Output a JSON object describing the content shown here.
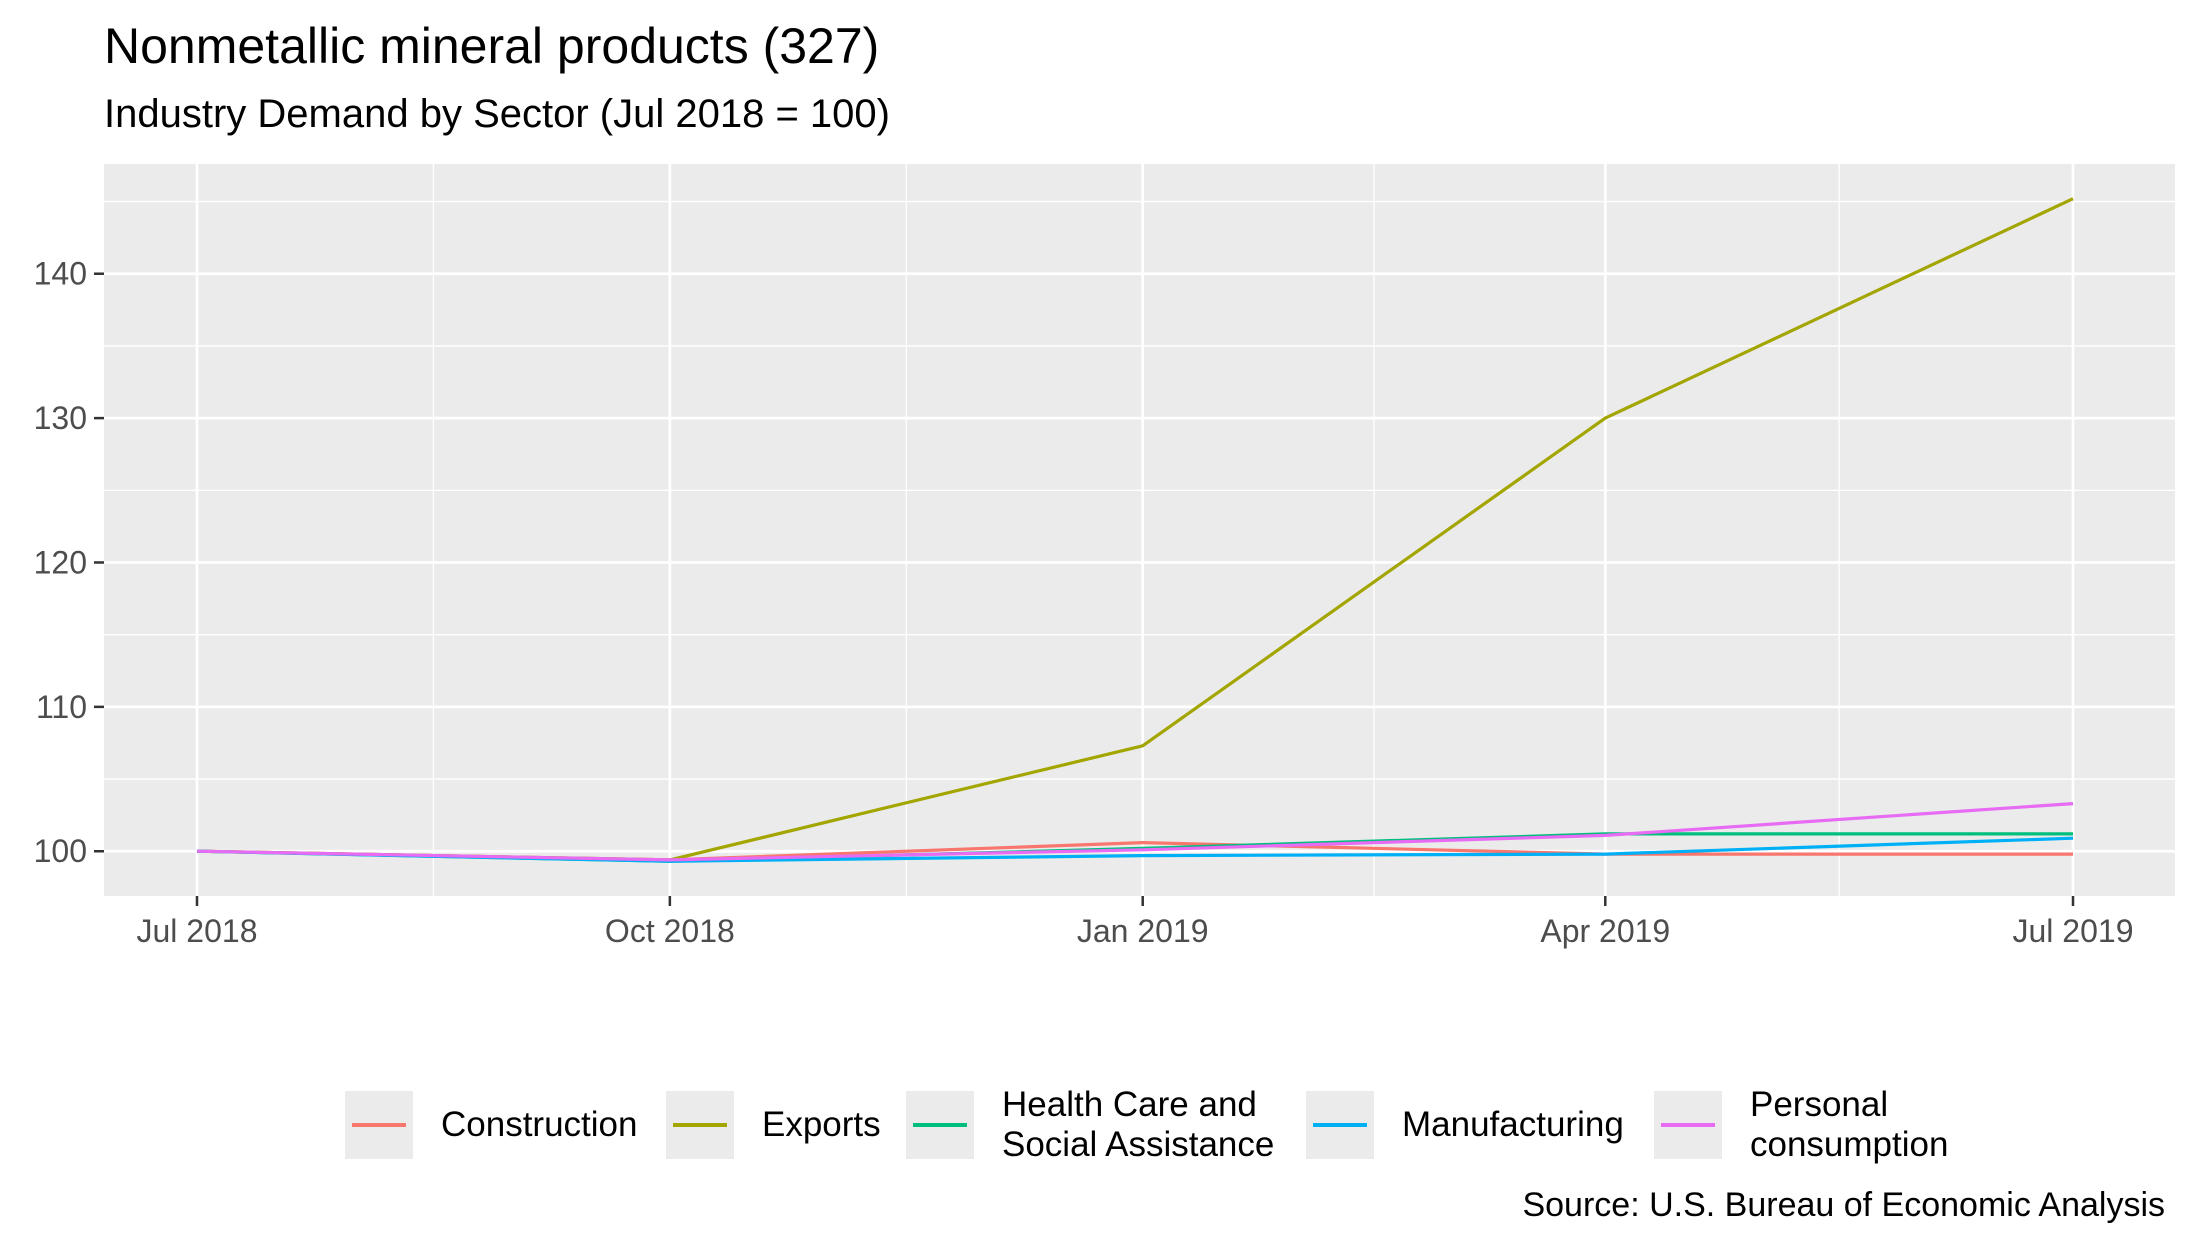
{
  "chart_data": {
    "type": "line",
    "title": "Nonmetallic mineral products (327)",
    "subtitle": "Industry Demand by Sector (Jul 2018 = 100)",
    "caption": "Source: U.S. Bureau of Economic Analysis",
    "xlabel": "",
    "ylabel": "",
    "x": [
      "2018-07-01",
      "2018-10-01",
      "2019-01-01",
      "2019-04-01",
      "2019-07-01"
    ],
    "x_ticks": [
      "Jul 2018",
      "Oct 2018",
      "Jan 2019",
      "Apr 2019",
      "Jul 2019"
    ],
    "y_ticks": [
      100,
      110,
      120,
      130,
      140
    ],
    "ylim": [
      96.9,
      147.6
    ],
    "grid": true,
    "legend_position": "bottom",
    "series": [
      {
        "name": "Construction",
        "color": "#F8766D",
        "values": [
          100,
          99.4,
          100.6,
          99.8,
          99.8
        ]
      },
      {
        "name": "Exports",
        "color": "#A3A500",
        "values": [
          100,
          99.4,
          107.3,
          130,
          145.2
        ]
      },
      {
        "name": "Health Care and\nSocial Assistance",
        "color": "#00BF7D",
        "values": [
          100,
          99.3,
          100.2,
          101.2,
          101.2
        ]
      },
      {
        "name": "Manufacturing",
        "color": "#00B0F6",
        "values": [
          100,
          99.3,
          99.7,
          99.8,
          100.9
        ]
      },
      {
        "name": "Personal\nconsumption",
        "color": "#E76BF3",
        "values": [
          100,
          99.4,
          100.1,
          101.1,
          103.3
        ]
      }
    ]
  }
}
